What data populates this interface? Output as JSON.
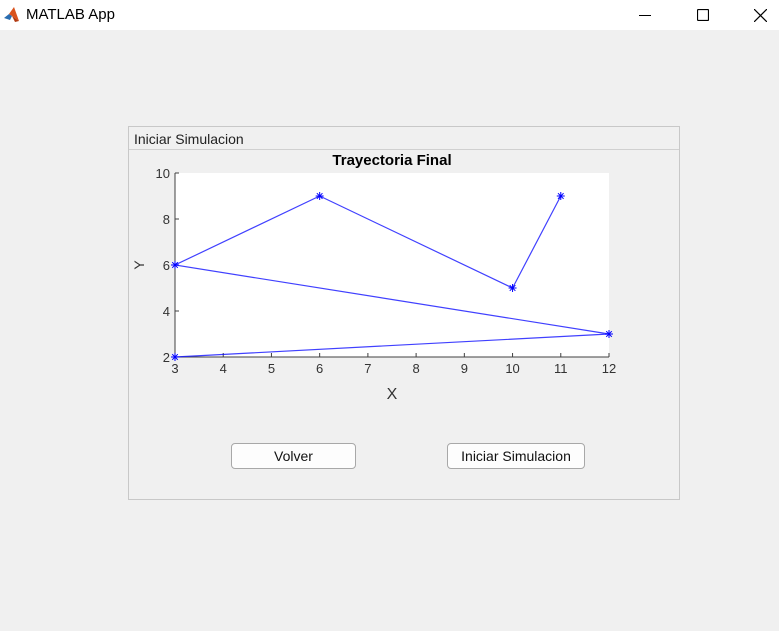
{
  "window": {
    "title": "MATLAB App",
    "icon": "matlab-logo-icon"
  },
  "panel": {
    "title": "Iniciar Simulacion"
  },
  "buttons": {
    "back_label": "Volver",
    "start_label": "Iniciar Simulacion"
  },
  "chart_data": {
    "type": "line",
    "title": "Trayectoria Final",
    "xlabel": "X",
    "ylabel": "Y",
    "xlim": [
      3,
      12
    ],
    "ylim": [
      2,
      10
    ],
    "xticks": [
      3,
      4,
      5,
      6,
      7,
      8,
      9,
      10,
      11,
      12
    ],
    "yticks": [
      2,
      4,
      6,
      8,
      10
    ],
    "grid": false,
    "marker": "asterisk",
    "color": "#0000ff",
    "series": [
      {
        "x": [
          3,
          12,
          3,
          6,
          10,
          11
        ],
        "y": [
          2,
          3,
          6,
          9,
          5,
          9
        ]
      }
    ]
  }
}
